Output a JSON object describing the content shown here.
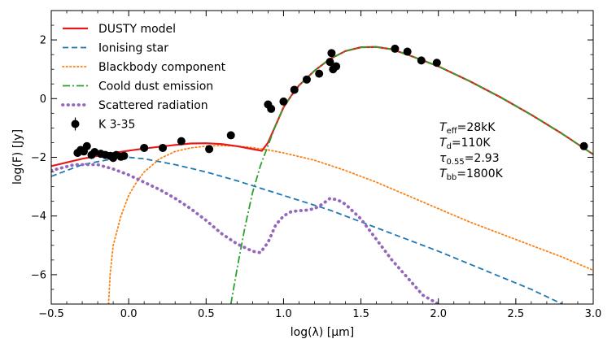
{
  "chart_data": {
    "type": "line",
    "xlabel": "log(λ) [μm]",
    "ylabel": "log(F) [Jy]",
    "xlim": [
      -0.5,
      3.0
    ],
    "ylim": [
      -7.0,
      3.0
    ],
    "x_ticks": [
      -0.5,
      0.0,
      0.5,
      1.0,
      1.5,
      2.0,
      2.5,
      3.0
    ],
    "x_tick_labels": [
      "−0.5",
      "0.0",
      "0.5",
      "1.0",
      "1.5",
      "2.0",
      "2.5",
      "3.0"
    ],
    "y_ticks": [
      -6,
      -4,
      -2,
      0,
      2
    ],
    "y_tick_labels": [
      "−6",
      "−4",
      "−2",
      "0",
      "2"
    ],
    "grid": false,
    "legend_position": "top-left",
    "series": [
      {
        "name": "DUSTY model",
        "style": "solid",
        "color": "#e41a1c",
        "x": [
          -0.5,
          -0.3,
          -0.1,
          0.1,
          0.3,
          0.4,
          0.5,
          0.6,
          0.7,
          0.8,
          0.86,
          0.9,
          0.95,
          1.0,
          1.05,
          1.1,
          1.2,
          1.3,
          1.4,
          1.5,
          1.6,
          1.7,
          1.8,
          1.9,
          2.0,
          2.2,
          2.4,
          2.6,
          2.8,
          3.0
        ],
        "y": [
          -2.3,
          -2.05,
          -1.85,
          -1.7,
          -1.58,
          -1.53,
          -1.52,
          -1.55,
          -1.62,
          -1.72,
          -1.78,
          -1.5,
          -0.9,
          -0.3,
          0.1,
          0.45,
          0.95,
          1.35,
          1.62,
          1.75,
          1.76,
          1.68,
          1.5,
          1.3,
          1.1,
          0.6,
          0.05,
          -0.55,
          -1.2,
          -1.9
        ]
      },
      {
        "name": "Ionising star",
        "style": "dashed",
        "color": "#1f77b4",
        "x": [
          -0.5,
          -0.3,
          -0.1,
          0.0,
          0.1,
          0.3,
          0.5,
          0.7,
          1.0,
          1.3,
          1.6,
          2.0,
          2.3,
          2.6,
          2.8
        ],
        "y": [
          -2.65,
          -2.25,
          -2.05,
          -2.0,
          -2.05,
          -2.25,
          -2.5,
          -2.8,
          -3.3,
          -3.8,
          -4.4,
          -5.2,
          -5.85,
          -6.5,
          -7.0
        ]
      },
      {
        "name": "Blackbody component",
        "style": "dotted",
        "color": "#ff7f0e",
        "x": [
          -0.13,
          -0.12,
          -0.1,
          -0.05,
          0.0,
          0.05,
          0.1,
          0.2,
          0.3,
          0.4,
          0.5,
          0.6,
          0.7,
          0.8,
          0.9,
          1.0,
          1.2,
          1.4,
          1.6,
          1.8,
          2.0,
          2.2,
          2.4,
          2.6,
          2.8,
          3.0
        ],
        "y": [
          -7.0,
          -6.0,
          -5.0,
          -4.0,
          -3.3,
          -2.85,
          -2.5,
          -2.05,
          -1.8,
          -1.68,
          -1.62,
          -1.6,
          -1.62,
          -1.67,
          -1.75,
          -1.85,
          -2.1,
          -2.45,
          -2.85,
          -3.3,
          -3.75,
          -4.2,
          -4.6,
          -5.0,
          -5.4,
          -5.85
        ]
      },
      {
        "name": "Coold dust emission",
        "style": "dashdot",
        "color": "#2ca02c",
        "x": [
          0.66,
          0.7,
          0.75,
          0.8,
          0.85,
          0.9,
          0.95,
          1.0,
          1.05,
          1.1,
          1.2,
          1.3,
          1.4,
          1.5,
          1.6,
          1.7,
          1.8,
          1.9,
          2.0,
          2.2,
          2.4,
          2.6,
          2.8,
          3.0
        ],
        "y": [
          -7.0,
          -5.8,
          -4.4,
          -3.2,
          -2.3,
          -1.6,
          -0.9,
          -0.3,
          0.1,
          0.45,
          0.95,
          1.35,
          1.62,
          1.75,
          1.76,
          1.68,
          1.5,
          1.3,
          1.1,
          0.6,
          0.05,
          -0.55,
          -1.2,
          -1.9
        ]
      },
      {
        "name": "Scattered radiation",
        "style": "dotted-thick",
        "color": "#9467bd",
        "x": [
          -0.5,
          -0.35,
          -0.2,
          -0.1,
          0.0,
          0.1,
          0.2,
          0.3,
          0.4,
          0.5,
          0.6,
          0.7,
          0.8,
          0.85,
          0.9,
          0.95,
          1.0,
          1.05,
          1.1,
          1.15,
          1.2,
          1.25,
          1.3,
          1.35,
          1.4,
          1.5,
          1.6,
          1.7,
          1.8,
          1.9,
          2.0
        ],
        "y": [
          -2.45,
          -2.25,
          -2.25,
          -2.4,
          -2.6,
          -2.85,
          -3.1,
          -3.4,
          -3.75,
          -4.15,
          -4.6,
          -4.95,
          -5.2,
          -5.25,
          -4.9,
          -4.3,
          -4.0,
          -3.85,
          -3.82,
          -3.8,
          -3.75,
          -3.6,
          -3.4,
          -3.45,
          -3.6,
          -4.1,
          -4.8,
          -5.5,
          -6.1,
          -6.7,
          -7.0
        ]
      }
    ],
    "scatter": {
      "name": "K 3-35",
      "color": "#000000",
      "x": [
        -0.33,
        -0.31,
        -0.29,
        -0.27,
        -0.24,
        -0.22,
        -0.18,
        -0.15,
        -0.12,
        -0.1,
        -0.08,
        -0.05,
        -0.03,
        0.1,
        0.22,
        0.34,
        0.52,
        0.66,
        0.9,
        0.92,
        1.0,
        1.07,
        1.15,
        1.23,
        1.3,
        1.31,
        1.32,
        1.34,
        1.72,
        1.8,
        1.89,
        1.99,
        2.94
      ],
      "y": [
        -1.85,
        -1.75,
        -1.8,
        -1.62,
        -1.92,
        -1.82,
        -1.88,
        -1.92,
        -1.95,
        -2.02,
        -1.92,
        -1.98,
        -1.95,
        -1.68,
        -1.68,
        -1.45,
        -1.72,
        -1.25,
        -0.2,
        -0.35,
        -0.1,
        0.3,
        0.65,
        0.85,
        1.25,
        1.55,
        1.0,
        1.1,
        1.7,
        1.6,
        1.3,
        1.22,
        -1.62
      ]
    }
  },
  "annotation": {
    "line1": {
      "sym": "T",
      "sub": "eff",
      "rest": "=28kK"
    },
    "line2": {
      "sym": "T",
      "sub": "d",
      "rest": "=110K"
    },
    "line3": {
      "sym": "τ",
      "sub": "0.55",
      "rest": "=2.93"
    },
    "line4": {
      "sym": "T",
      "sub": "bb",
      "rest": "=1800K"
    }
  }
}
